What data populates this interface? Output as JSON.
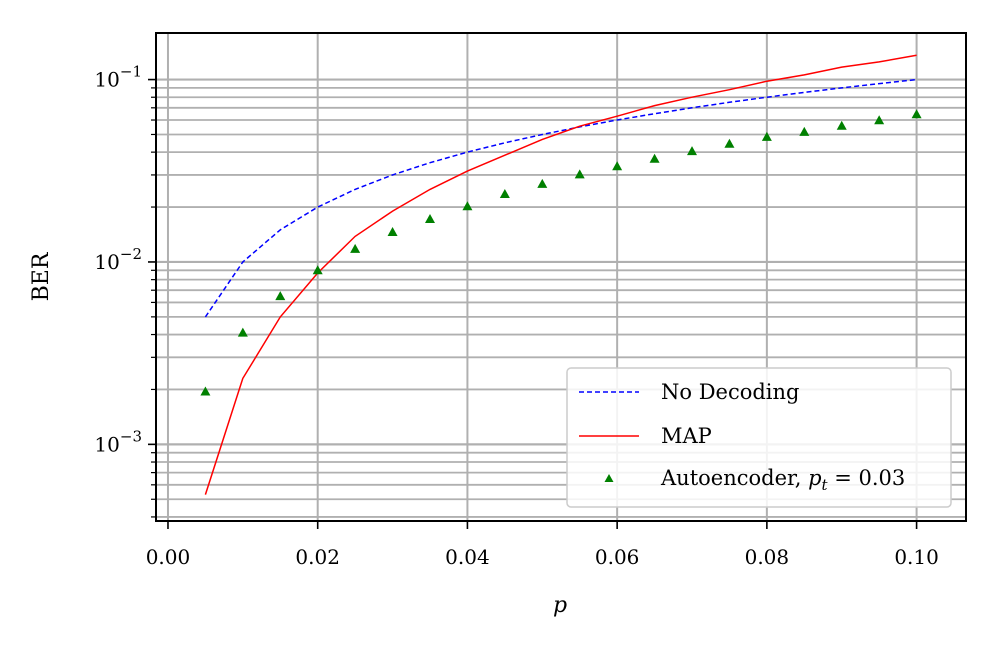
{
  "chart_data": {
    "type": "line",
    "xlabel": "p",
    "ylabel": "BER",
    "xlim": [
      -0.0016,
      0.1066
    ],
    "ylim": [
      0.00038,
      0.18
    ],
    "yscale": "log",
    "grid": true,
    "legend_position": "bottom-right",
    "x_ticks": [
      0.0,
      0.02,
      0.04,
      0.06,
      0.08,
      0.1
    ],
    "x_tick_labels": [
      "0.00",
      "0.02",
      "0.04",
      "0.06",
      "0.08",
      "0.10"
    ],
    "y_ticks": [
      0.001,
      0.01,
      0.1
    ],
    "y_tick_labels": [
      {
        "base": "10",
        "exp": "−3"
      },
      {
        "base": "10",
        "exp": "−2"
      },
      {
        "base": "10",
        "exp": "−1"
      }
    ],
    "series": [
      {
        "name": "No Decoding",
        "style": "dashed-line",
        "color": "#0000ff",
        "x": [
          0.005,
          0.01,
          0.015,
          0.02,
          0.025,
          0.03,
          0.035,
          0.04,
          0.045,
          0.05,
          0.055,
          0.06,
          0.065,
          0.07,
          0.075,
          0.08,
          0.085,
          0.09,
          0.095,
          0.1
        ],
        "y": [
          0.005,
          0.01,
          0.015,
          0.02,
          0.025,
          0.03,
          0.035,
          0.04,
          0.045,
          0.05,
          0.055,
          0.06,
          0.065,
          0.07,
          0.075,
          0.08,
          0.085,
          0.09,
          0.095,
          0.1
        ]
      },
      {
        "name": "MAP",
        "style": "solid-line",
        "color": "#ff0000",
        "x": [
          0.005,
          0.01,
          0.015,
          0.02,
          0.025,
          0.03,
          0.035,
          0.04,
          0.045,
          0.05,
          0.055,
          0.06,
          0.065,
          0.07,
          0.075,
          0.08,
          0.085,
          0.09,
          0.095,
          0.1
        ],
        "y": [
          0.00053,
          0.0023,
          0.005,
          0.0087,
          0.0138,
          0.019,
          0.025,
          0.0315,
          0.0385,
          0.047,
          0.0555,
          0.063,
          0.072,
          0.08,
          0.088,
          0.098,
          0.106,
          0.117,
          0.125,
          0.136
        ]
      },
      {
        "name": "Autoencoder, ",
        "name_math": "p_t = 0.03",
        "style": "triangle-markers",
        "color": "#008000",
        "x": [
          0.005,
          0.01,
          0.015,
          0.02,
          0.025,
          0.03,
          0.035,
          0.04,
          0.045,
          0.05,
          0.055,
          0.06,
          0.065,
          0.07,
          0.075,
          0.08,
          0.085,
          0.09,
          0.095,
          0.1
        ],
        "y": [
          0.00195,
          0.0041,
          0.0065,
          0.009,
          0.0118,
          0.0146,
          0.0172,
          0.0202,
          0.0236,
          0.0268,
          0.0302,
          0.0335,
          0.0368,
          0.0405,
          0.0445,
          0.0485,
          0.0517,
          0.0558,
          0.0598,
          0.0645
        ]
      }
    ],
    "legend": {
      "entries": [
        {
          "label": "No Decoding"
        },
        {
          "label": "MAP"
        },
        {
          "label": "Autoencoder, ",
          "math_var": "p",
          "math_sub": "t",
          "math_rest": " = 0.03"
        }
      ]
    }
  }
}
